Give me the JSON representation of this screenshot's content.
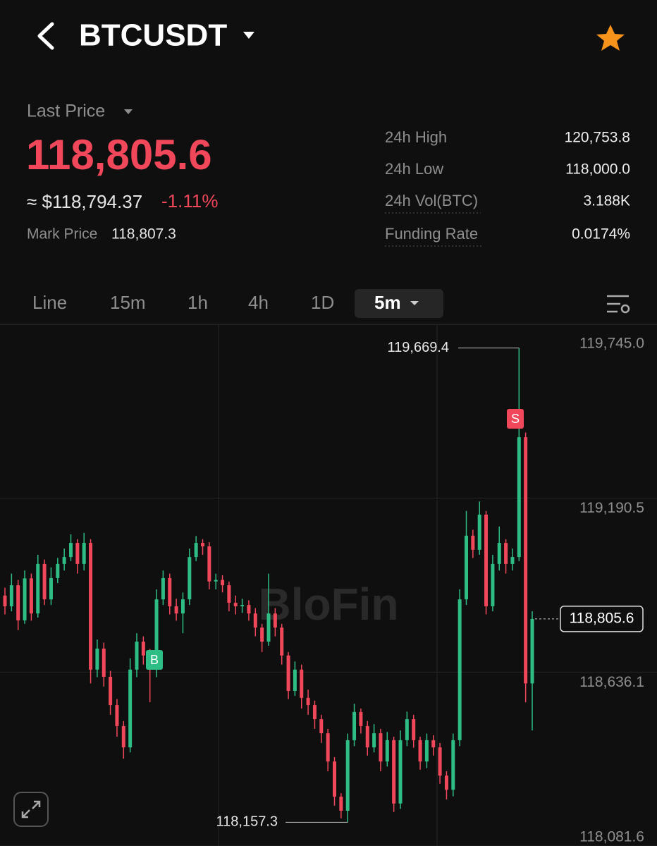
{
  "header": {
    "title": "BTCUSDT"
  },
  "price": {
    "label": "Last Price",
    "value": "118,805.6",
    "usd": "≈ $118,794.37",
    "change": "-1.11%",
    "mark_label": "Mark Price",
    "mark_value": "118,807.3"
  },
  "stats": [
    {
      "label": "24h High",
      "value": "120,753.8"
    },
    {
      "label": "24h Low",
      "value": "118,000.0"
    },
    {
      "label": "24h Vol(BTC)",
      "value": "3.188K"
    },
    {
      "label": "Funding Rate",
      "value": "0.0174%"
    }
  ],
  "tabs": [
    "Line",
    "15m",
    "1h",
    "4h",
    "1D"
  ],
  "interval": "5m",
  "chart_data": {
    "type": "candlestick",
    "watermark": "BloFin",
    "buy_marker": "B",
    "sell_marker": "S",
    "up_color": "#2ebd85",
    "down_color": "#f0475a",
    "ylim": [
      118081.6,
      119745.0
    ],
    "yticks": [
      {
        "value": 119745.0,
        "label": "119,745.0"
      },
      {
        "value": 119190.5,
        "label": "119,190.5"
      },
      {
        "value": 118636.1,
        "label": "118,636.1"
      },
      {
        "value": 118081.6,
        "label": "118,081.6"
      }
    ],
    "high": {
      "value": 119669.4,
      "label": "119,669.4"
    },
    "low": {
      "value": 118157.3,
      "label": "118,157.3"
    },
    "last": {
      "value": 118805.6,
      "label": "118,805.6"
    },
    "candles": [
      [
        118880,
        118905,
        118820,
        118846
      ],
      [
        118846,
        118950,
        118830,
        118913
      ],
      [
        118913,
        118930,
        118770,
        118801
      ],
      [
        118801,
        118960,
        118790,
        118935
      ],
      [
        118935,
        118950,
        118800,
        118823
      ],
      [
        118823,
        119010,
        118810,
        118981
      ],
      [
        118981,
        118995,
        118850,
        118868
      ],
      [
        118868,
        118970,
        118850,
        118936
      ],
      [
        118936,
        119000,
        118920,
        118981
      ],
      [
        118981,
        119030,
        118960,
        119003
      ],
      [
        119003,
        119075,
        118990,
        119048
      ],
      [
        119048,
        119060,
        118950,
        118981
      ],
      [
        118981,
        119080,
        118960,
        119048
      ],
      [
        119048,
        119060,
        118600,
        118644
      ],
      [
        118644,
        118740,
        118620,
        118711
      ],
      [
        118711,
        118730,
        118590,
        118621
      ],
      [
        118621,
        118640,
        118500,
        118531
      ],
      [
        118531,
        118550,
        118430,
        118464
      ],
      [
        118464,
        118480,
        118360,
        118396
      ],
      [
        118396,
        118680,
        118380,
        118644
      ],
      [
        118644,
        118760,
        118620,
        118733
      ],
      [
        118733,
        118750,
        118660,
        118689
      ],
      [
        118689,
        118710,
        118540,
        118644
      ],
      [
        118644,
        118900,
        118620,
        118868
      ],
      [
        118868,
        118960,
        118850,
        118936
      ],
      [
        118936,
        118950,
        118820,
        118846
      ],
      [
        118846,
        118870,
        118800,
        118823
      ],
      [
        118823,
        118890,
        118760,
        118868
      ],
      [
        118868,
        119030,
        118850,
        119003
      ],
      [
        119003,
        119070,
        118990,
        119048
      ],
      [
        119048,
        119060,
        119010,
        119037
      ],
      [
        119037,
        119050,
        118900,
        118925
      ],
      [
        118925,
        118950,
        118900,
        118930
      ],
      [
        118930,
        118945,
        118890,
        118913
      ],
      [
        118913,
        118925,
        118830,
        118857
      ],
      [
        118857,
        118880,
        118820,
        118846
      ],
      [
        118846,
        118870,
        118825,
        118850
      ],
      [
        118850,
        118865,
        118800,
        118823
      ],
      [
        118823,
        118840,
        118750,
        118778
      ],
      [
        118778,
        118790,
        118700,
        118733
      ],
      [
        118733,
        118950,
        118720,
        118823
      ],
      [
        118823,
        118840,
        118750,
        118778
      ],
      [
        118778,
        118790,
        118660,
        118689
      ],
      [
        118689,
        118700,
        118550,
        118576
      ],
      [
        118576,
        118670,
        118560,
        118644
      ],
      [
        118644,
        118660,
        118520,
        118554
      ],
      [
        118554,
        118580,
        118500,
        118531
      ],
      [
        118531,
        118545,
        118455,
        118486
      ],
      [
        118486,
        118500,
        118410,
        118441
      ],
      [
        118441,
        118455,
        118320,
        118351
      ],
      [
        118351,
        118365,
        118210,
        118239
      ],
      [
        118239,
        118250,
        118170,
        118194
      ],
      [
        118194,
        118440,
        118157.3,
        118419
      ],
      [
        118419,
        118535,
        118400,
        118509
      ],
      [
        118509,
        118520,
        118440,
        118464
      ],
      [
        118464,
        118480,
        118370,
        118396
      ],
      [
        118396,
        118470,
        118380,
        118441
      ],
      [
        118441,
        118455,
        118320,
        118351
      ],
      [
        118351,
        118445,
        118335,
        118419
      ],
      [
        118419,
        118430,
        118190,
        118217
      ],
      [
        118217,
        118450,
        118200,
        118419
      ],
      [
        118419,
        118510,
        118400,
        118486
      ],
      [
        118486,
        118500,
        118395,
        118419
      ],
      [
        118419,
        118430,
        118325,
        118351
      ],
      [
        118351,
        118440,
        118330,
        118419
      ],
      [
        118419,
        118435,
        118370,
        118396
      ],
      [
        118396,
        118410,
        118280,
        118306
      ],
      [
        118306,
        118320,
        118230,
        118261
      ],
      [
        118261,
        118440,
        118240,
        118419
      ],
      [
        118419,
        118900,
        118400,
        118868
      ],
      [
        118868,
        119150,
        118850,
        119071
      ],
      [
        119071,
        119090,
        119000,
        119026
      ],
      [
        119026,
        119180,
        119010,
        119138
      ],
      [
        119138,
        119150,
        118820,
        118846
      ],
      [
        118846,
        119010,
        118830,
        118981
      ],
      [
        118981,
        119100,
        118960,
        119048
      ],
      [
        119048,
        119060,
        118950,
        118981
      ],
      [
        118981,
        119030,
        118960,
        119003
      ],
      [
        119003,
        119669.4,
        118990,
        119385
      ],
      [
        119385,
        119400,
        118540,
        118600
      ],
      [
        118600,
        118830,
        118450,
        118805.6
      ]
    ]
  }
}
